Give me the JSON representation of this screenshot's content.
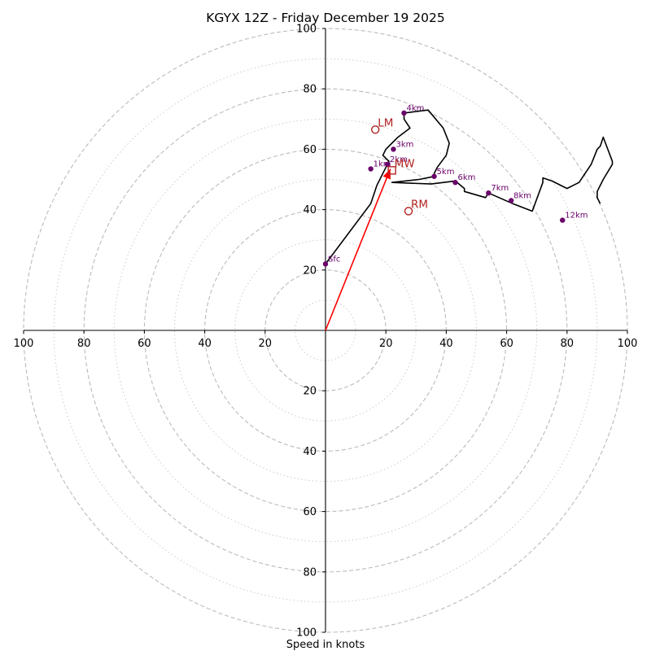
{
  "chart_data": {
    "type": "hodograph",
    "title": "KGYX 12Z - Friday December 19 2025",
    "xlabel": "Speed in knots",
    "range": [
      -100,
      100
    ],
    "rings_major": [
      20,
      40,
      60,
      80,
      100
    ],
    "rings_minor": [
      10,
      30,
      50,
      70,
      90
    ],
    "grid": "on",
    "tick_labels": {
      "x": [
        "100",
        "80",
        "60",
        "40",
        "20",
        "20",
        "40",
        "60",
        "80",
        "100"
      ],
      "x_values": [
        -100,
        -80,
        -60,
        -40,
        -20,
        20,
        40,
        60,
        80,
        100
      ],
      "y": [
        "100",
        "80",
        "60",
        "40",
        "20",
        "20",
        "40",
        "60",
        "80",
        "100"
      ],
      "y_values": [
        100,
        80,
        60,
        40,
        20,
        -20,
        -40,
        -60,
        -80,
        -100
      ]
    },
    "trace": {
      "color": "#000000",
      "points": [
        [
          0,
          22
        ],
        [
          15,
          42
        ],
        [
          17,
          48
        ],
        [
          20,
          54
        ],
        [
          21,
          56
        ],
        [
          19,
          58
        ],
        [
          20,
          60
        ],
        [
          22,
          62
        ],
        [
          24,
          64
        ],
        [
          28,
          67
        ],
        [
          26,
          70
        ],
        [
          26,
          72
        ],
        [
          34,
          73
        ],
        [
          39,
          67
        ],
        [
          41,
          62
        ],
        [
          40,
          58
        ],
        [
          37,
          54
        ],
        [
          36,
          52
        ],
        [
          36,
          51
        ],
        [
          31,
          50
        ],
        [
          22,
          49
        ],
        [
          35,
          48.5
        ],
        [
          43,
          49.5
        ],
        [
          46,
          47
        ],
        [
          46,
          46
        ],
        [
          53,
          44
        ],
        [
          54,
          45.5
        ],
        [
          62,
          42
        ],
        [
          68.5,
          39.5
        ],
        [
          72,
          49
        ],
        [
          72,
          50.5
        ],
        [
          75,
          49.5
        ],
        [
          80,
          47
        ],
        [
          84,
          49
        ],
        [
          88,
          55
        ],
        [
          90,
          60
        ],
        [
          91,
          61
        ],
        [
          92,
          64
        ],
        [
          95,
          56
        ],
        [
          95,
          55
        ],
        [
          92,
          50
        ],
        [
          90,
          46
        ],
        [
          90,
          44
        ],
        [
          91,
          42
        ]
      ]
    },
    "heights": {
      "marker_color": "#6a006a",
      "points": [
        {
          "label": "Sfc",
          "u": 0,
          "v": 22
        },
        {
          "label": "1km",
          "u": 15,
          "v": 53.5
        },
        {
          "label": "2km",
          "u": 20.5,
          "v": 55
        },
        {
          "label": "3km",
          "u": 22.5,
          "v": 60
        },
        {
          "label": "4km",
          "u": 26,
          "v": 72
        },
        {
          "label": "5km",
          "u": 36,
          "v": 51
        },
        {
          "label": "6km",
          "u": 43,
          "v": 49
        },
        {
          "label": "7km",
          "u": 54,
          "v": 45.5
        },
        {
          "label": "8km",
          "u": 61.5,
          "v": 43
        },
        {
          "label": "12km",
          "u": 78.5,
          "v": 36.5
        }
      ]
    },
    "storm_motion": {
      "color": "#b22222",
      "vector_color": "#ff0000",
      "vector": {
        "from": [
          0,
          0
        ],
        "to": [
          21.5,
          53.5
        ]
      },
      "LM": {
        "label": "LM",
        "u": 16.5,
        "v": 66.5
      },
      "MW": {
        "label": "MW",
        "u": 22,
        "v": 53
      },
      "RM": {
        "label": "RM",
        "u": 27.5,
        "v": 39.5
      }
    }
  }
}
